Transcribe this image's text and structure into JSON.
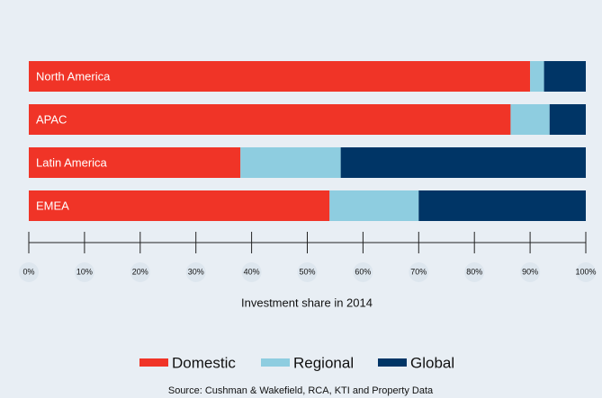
{
  "chart_data": {
    "type": "stacked_barh",
    "categories": [
      "North America",
      "APAC",
      "Latin America",
      "EMEA"
    ],
    "series": [
      {
        "name": "Domestic",
        "color": "#f03427",
        "values": [
          90,
          86.5,
          38,
          54
        ]
      },
      {
        "name": "Regional",
        "color": "#8ecde0",
        "values": [
          2.5,
          7,
          18,
          16
        ]
      },
      {
        "name": "Global",
        "color": "#003566",
        "values": [
          7.5,
          6.5,
          44,
          30
        ]
      }
    ],
    "xlim": [
      0,
      100
    ],
    "xticks": [
      {
        "value": 0,
        "label": "0%"
      },
      {
        "value": 10,
        "label": "10%"
      },
      {
        "value": 20,
        "label": "20%"
      },
      {
        "value": 30,
        "label": "30%"
      },
      {
        "value": 40,
        "label": "40%"
      },
      {
        "value": 50,
        "label": "50%"
      },
      {
        "value": 60,
        "label": "60%"
      },
      {
        "value": 70,
        "label": "70%"
      },
      {
        "value": 80,
        "label": "80%"
      },
      {
        "value": 90,
        "label": "90%"
      },
      {
        "value": 100,
        "label": "100%"
      }
    ],
    "xlabel": "Investment share in 2014",
    "source": "Source: Cushman & Wakefield, RCA, KTI and Property Data",
    "legend": "bottom"
  }
}
